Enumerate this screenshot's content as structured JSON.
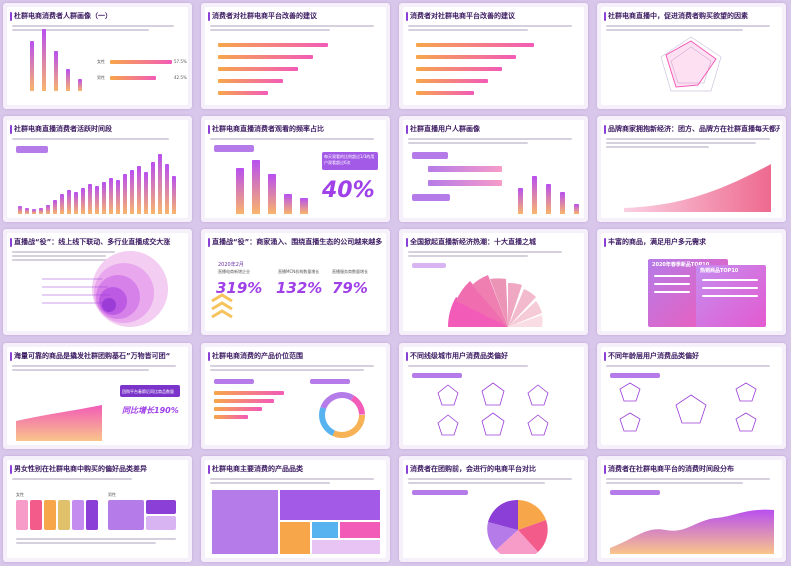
{
  "slides": [
    {
      "title": "杜群电商消费者人群画像（一）",
      "labels": [
        "女性",
        "男性"
      ],
      "values": [
        "57.5%",
        "42.5%"
      ]
    },
    {
      "title": "消费者对社群电商平台改善的建议"
    },
    {
      "title": "消费者对社群电商平台改善的建议"
    },
    {
      "title": "社群电商直播中，促进消费者购买欲望的因素"
    },
    {
      "title": "社群电商直播消费者活跃时间段"
    },
    {
      "title": "社群电商直播消费者观看的频率占比",
      "callout": "每天观看的比例超过1/3的用户观看超过6次",
      "stat": "40%"
    },
    {
      "title": "社群直播用户人群画像"
    },
    {
      "title": "品牌商家拥抱新经济：团方、品牌方在社群直播每天都开播"
    },
    {
      "title": "直播战“役”：线上线下联动、多行业直播成交大涨"
    },
    {
      "title": "直播战“役”：商家涌入、围绕直播生态的公司越来越多",
      "year": "2020年2月",
      "stats": [
        "319%",
        "132%",
        "79%"
      ],
      "stat_labels": [
        "直播电商新增企业",
        "直播MCN机构数量增长",
        "直播服务商数量增长"
      ]
    },
    {
      "title": "全国掀起直播新经济热潮：十大直播之城"
    },
    {
      "title": "丰富的商品，满足用户多元需求",
      "ribbon1": "2020年春季新品TOP10",
      "ribbon2": "热销商品TOP10"
    },
    {
      "title": "海量可靠的商品是撬发社群团购基石”万物皆可团“",
      "callout": "团购平台春節后同比商品数量",
      "stat": "同比增长190%"
    },
    {
      "title": "社群电商消费的产品价位范围"
    },
    {
      "title": "不同线级城市用户消费品类偏好"
    },
    {
      "title": "不同年龄层用户消费品类偏好"
    },
    {
      "title": "男女性别在社群电商中购买的偏好品类差异",
      "labels": [
        "女性",
        "男性"
      ]
    },
    {
      "title": "杜群电商主要消费的产品品类"
    },
    {
      "title": "消费者在团购前，会进行的电商平台对比"
    },
    {
      "title": "消费者在社群电商平台的消费时间段分布"
    }
  ],
  "colors": {
    "accent": "#8b3fd6",
    "orange": "#f7a64a",
    "pink": "#f25bb8",
    "title": "#3b1a61"
  }
}
